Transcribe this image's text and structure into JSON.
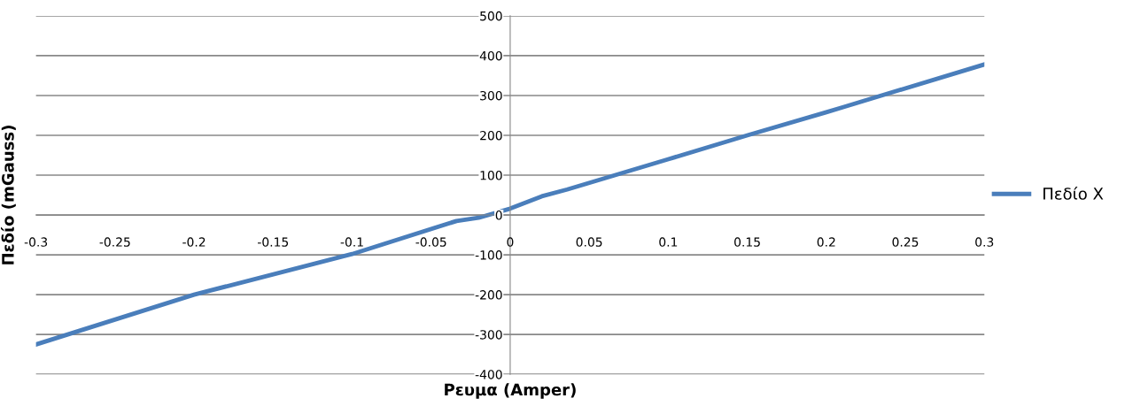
{
  "chart_data": {
    "type": "line",
    "xlabel": "Ρευμα (Amper)",
    "ylabel": "Πεδίο (mGauss)",
    "x": [
      -0.3,
      -0.2,
      -0.1,
      -0.034,
      -0.02,
      0,
      0.02,
      0.036,
      0.1,
      0.15,
      0.2,
      0.21,
      0.3
    ],
    "series": [
      {
        "name": "Πεδίο X",
        "color": "#4a7ebb",
        "values": [
          -325,
          -200,
          -98,
          -15,
          -7,
          16,
          47,
          64,
          140,
          200,
          258,
          270,
          378
        ]
      }
    ],
    "xlim": [
      -0.3,
      0.3
    ],
    "xticks": [
      -0.3,
      -0.25,
      -0.2,
      -0.15,
      -0.1,
      -0.05,
      0,
      0.05,
      0.1,
      0.15,
      0.2,
      0.25,
      0.3
    ],
    "ylim": [
      -400,
      500
    ],
    "yticks": [
      -400,
      -300,
      -200,
      -100,
      0,
      100,
      200,
      300,
      400,
      500
    ],
    "grid": "y",
    "legend": "right",
    "marker": "none",
    "line_style": "solid"
  }
}
